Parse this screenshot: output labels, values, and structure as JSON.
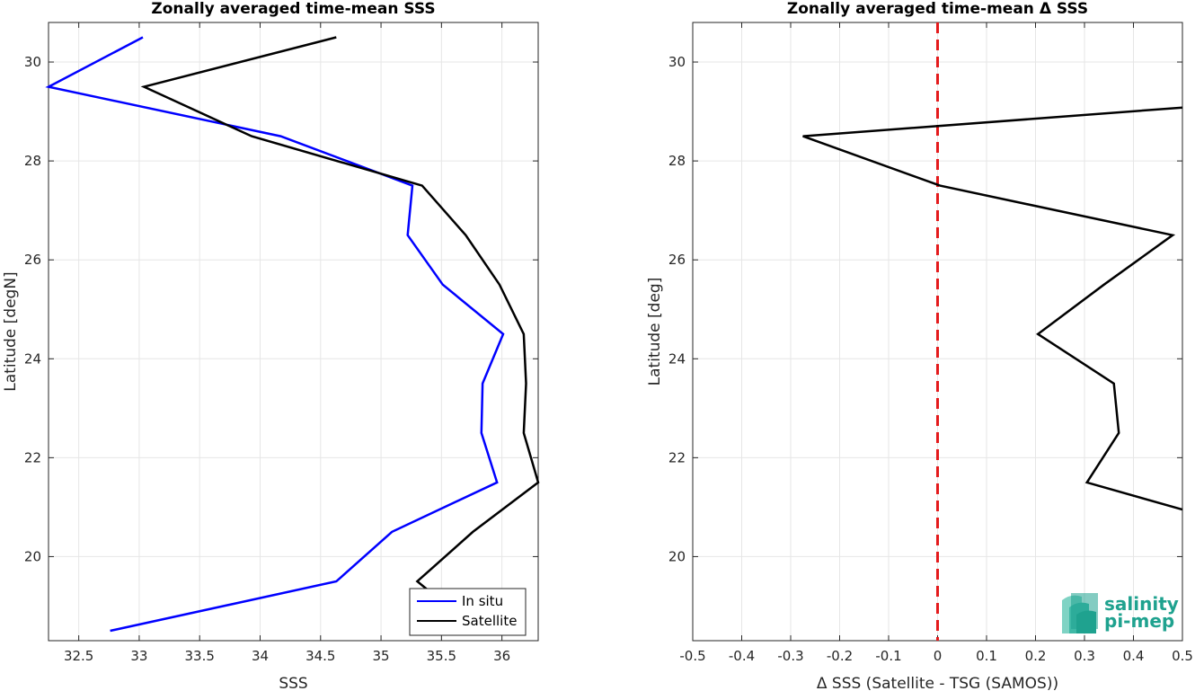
{
  "chart_data": [
    {
      "type": "line",
      "title": "Zonally averaged time-mean SSS",
      "xlabel": "SSS",
      "ylabel": "Latitude [degN]",
      "xlim": [
        32.25,
        36.3
      ],
      "ylim": [
        18.3,
        30.8
      ],
      "x_ticks": [
        "32.5",
        "33",
        "33.5",
        "34",
        "34.5",
        "35",
        "35.5",
        "36"
      ],
      "x_tick_values": [
        32.5,
        33,
        33.5,
        34,
        34.5,
        35,
        35.5,
        36
      ],
      "y_ticks": [
        "20",
        "22",
        "24",
        "26",
        "28",
        "30"
      ],
      "y_tick_values": [
        20,
        22,
        24,
        26,
        28,
        30
      ],
      "grid": true,
      "legend_position": "bottom-right",
      "series": [
        {
          "name": "In situ",
          "color": "#0000ff",
          "points": [
            [
              33.03,
              30.5
            ],
            [
              32.25,
              29.5
            ],
            [
              34.17,
              28.5
            ],
            [
              35.26,
              27.5
            ],
            [
              35.22,
              26.5
            ],
            [
              35.51,
              25.5
            ],
            [
              36.01,
              24.5
            ],
            [
              35.84,
              23.5
            ],
            [
              35.83,
              22.5
            ],
            [
              35.96,
              21.5
            ],
            [
              35.09,
              20.5
            ],
            [
              34.63,
              19.5
            ],
            [
              32.76,
              18.5
            ]
          ]
        },
        {
          "name": "Satellite",
          "color": "#000000",
          "points": [
            [
              34.63,
              30.5
            ],
            [
              33.04,
              29.5
            ],
            [
              33.93,
              28.5
            ],
            [
              35.34,
              27.5
            ],
            [
              35.7,
              26.5
            ],
            [
              35.98,
              25.5
            ],
            [
              36.18,
              24.5
            ],
            [
              36.2,
              23.5
            ],
            [
              36.18,
              22.5
            ],
            [
              36.3,
              21.5
            ],
            [
              35.76,
              20.5
            ],
            [
              35.3,
              19.5
            ],
            [
              35.4,
              19.3
            ]
          ]
        }
      ]
    },
    {
      "type": "line",
      "title": "Zonally averaged time-mean Δ SSS",
      "xlabel": "Δ SSS (Satellite - TSG (SAMOS))",
      "ylabel": "Latitude [deg]",
      "xlim": [
        -0.5,
        0.5
      ],
      "ylim": [
        18.3,
        30.8
      ],
      "x_ticks": [
        "-0.5",
        "-0.4",
        "-0.3",
        "-0.2",
        "-0.1",
        "0",
        "0.1",
        "0.2",
        "0.3",
        "0.4",
        "0.5"
      ],
      "x_tick_values": [
        -0.5,
        -0.4,
        -0.3,
        -0.2,
        -0.1,
        0,
        0.1,
        0.2,
        0.3,
        0.4,
        0.5
      ],
      "y_ticks": [
        "20",
        "22",
        "24",
        "26",
        "28",
        "30"
      ],
      "y_tick_values": [
        20,
        22,
        24,
        26,
        28,
        30
      ],
      "grid": true,
      "reference_line": {
        "x": 0,
        "color": "#e41a1c",
        "style": "dashed"
      },
      "series": [
        {
          "color": "#000000",
          "points": [
            [
              0.5,
              29.08
            ],
            [
              -0.275,
              28.5
            ],
            [
              0.005,
              27.5
            ],
            [
              0.48,
              26.5
            ],
            [
              0.34,
              25.5
            ],
            [
              0.205,
              24.5
            ],
            [
              0.36,
              23.5
            ],
            [
              0.37,
              22.5
            ],
            [
              0.305,
              21.5
            ],
            [
              0.5,
              20.95
            ]
          ]
        }
      ]
    }
  ],
  "logo": {
    "line1": "salinity",
    "line2": "pi-mep",
    "color": "#1fa28f"
  }
}
